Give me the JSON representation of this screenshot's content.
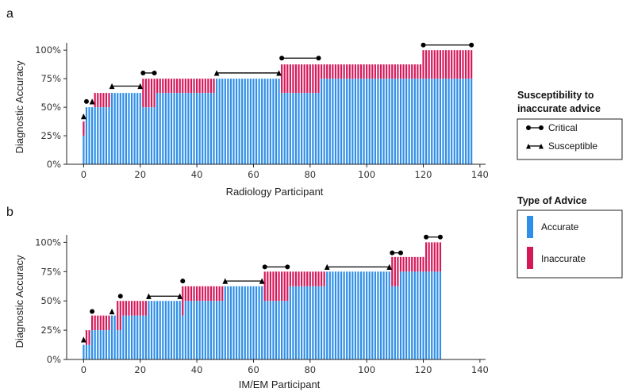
{
  "colors": {
    "accurate": "#2f8fe8",
    "inaccurate": "#d4195a",
    "marker": "#000000"
  },
  "legend": {
    "susceptibility_title_line1": "Susceptibility to",
    "susceptibility_title_line2": "inaccurate advice",
    "critical_label": "Critical",
    "susceptible_label": "Susceptible",
    "advice_title": "Type of Advice",
    "accurate_label": "Accurate",
    "inaccurate_label": "Inaccurate"
  },
  "chart_data": [
    {
      "panel": "a",
      "type": "bar",
      "stacked": true,
      "xlabel": "Radiology Participant",
      "ylabel": "Diagnostic Accuracy",
      "xlim": [
        -6,
        142
      ],
      "ylim": [
        0,
        1.05
      ],
      "xticks": [
        0,
        20,
        40,
        60,
        80,
        100,
        120,
        140
      ],
      "yticks": [
        0,
        0.25,
        0.5,
        0.75,
        1.0
      ],
      "ytick_labels": [
        "0%",
        "25%",
        "50%",
        "75%",
        "100%"
      ],
      "series_names": [
        "Accurate",
        "Inaccurate"
      ],
      "segments": [
        {
          "from": 0,
          "to": 0,
          "accurate": 0.25,
          "total": 0.375
        },
        {
          "from": 1,
          "to": 1,
          "accurate": 0.5,
          "total": 0.5
        },
        {
          "from": 2,
          "to": 2,
          "accurate": 0.5,
          "total": 0.5
        },
        {
          "from": 3,
          "to": 3,
          "accurate": 0.5,
          "total": 0.5
        },
        {
          "from": 4,
          "to": 9,
          "accurate": 0.5,
          "total": 0.625
        },
        {
          "from": 10,
          "to": 20,
          "accurate": 0.625,
          "total": 0.625
        },
        {
          "from": 21,
          "to": 25,
          "accurate": 0.5,
          "total": 0.75
        },
        {
          "from": 26,
          "to": 46,
          "accurate": 0.625,
          "total": 0.75
        },
        {
          "from": 47,
          "to": 69,
          "accurate": 0.75,
          "total": 0.75
        },
        {
          "from": 70,
          "to": 83,
          "accurate": 0.625,
          "total": 0.875
        },
        {
          "from": 84,
          "to": 119,
          "accurate": 0.75,
          "total": 0.875
        },
        {
          "from": 120,
          "to": 137,
          "accurate": 0.75,
          "total": 1.0
        }
      ],
      "markers": [
        {
          "type": "susceptible",
          "x": [
            0
          ],
          "y": 0.42
        },
        {
          "type": "critical",
          "x": [
            1
          ],
          "y": 0.55
        },
        {
          "type": "susceptible",
          "x": [
            3
          ],
          "y": 0.55
        },
        {
          "type": "susceptible",
          "x": [
            10,
            20
          ],
          "y": 0.685
        },
        {
          "type": "critical",
          "x": [
            21,
            25
          ],
          "y": 0.8
        },
        {
          "type": "susceptible",
          "x": [
            47,
            69
          ],
          "y": 0.8
        },
        {
          "type": "critical",
          "x": [
            70,
            83
          ],
          "y": 0.93
        },
        {
          "type": "critical",
          "x": [
            120,
            137
          ],
          "y": 1.045
        }
      ]
    },
    {
      "panel": "b",
      "type": "bar",
      "stacked": true,
      "xlabel": "IM/EM Participant",
      "ylabel": "Diagnostic Accuracy",
      "xlim": [
        -6,
        142
      ],
      "ylim": [
        0,
        1.05
      ],
      "xticks": [
        0,
        20,
        40,
        60,
        80,
        100,
        120,
        140
      ],
      "yticks": [
        0,
        0.25,
        0.5,
        0.75,
        1.0
      ],
      "ytick_labels": [
        "0%",
        "25%",
        "50%",
        "75%",
        "100%"
      ],
      "series_names": [
        "Accurate",
        "Inaccurate"
      ],
      "segments": [
        {
          "from": 0,
          "to": 0,
          "accurate": 0.125,
          "total": 0.125
        },
        {
          "from": 1,
          "to": 2,
          "accurate": 0.125,
          "total": 0.25
        },
        {
          "from": 3,
          "to": 3,
          "accurate": 0.25,
          "total": 0.375
        },
        {
          "from": 4,
          "to": 9,
          "accurate": 0.25,
          "total": 0.375
        },
        {
          "from": 10,
          "to": 11,
          "accurate": 0.375,
          "total": 0.375
        },
        {
          "from": 12,
          "to": 13,
          "accurate": 0.25,
          "total": 0.5
        },
        {
          "from": 14,
          "to": 22,
          "accurate": 0.375,
          "total": 0.5
        },
        {
          "from": 23,
          "to": 34,
          "accurate": 0.5,
          "total": 0.5
        },
        {
          "from": 35,
          "to": 35,
          "accurate": 0.375,
          "total": 0.625
        },
        {
          "from": 36,
          "to": 49,
          "accurate": 0.5,
          "total": 0.625
        },
        {
          "from": 50,
          "to": 63,
          "accurate": 0.625,
          "total": 0.625
        },
        {
          "from": 64,
          "to": 72,
          "accurate": 0.5,
          "total": 0.75
        },
        {
          "from": 73,
          "to": 85,
          "accurate": 0.625,
          "total": 0.75
        },
        {
          "from": 86,
          "to": 108,
          "accurate": 0.75,
          "total": 0.75
        },
        {
          "from": 109,
          "to": 111,
          "accurate": 0.625,
          "total": 0.875
        },
        {
          "from": 112,
          "to": 120,
          "accurate": 0.75,
          "total": 0.875
        },
        {
          "from": 121,
          "to": 126,
          "accurate": 0.75,
          "total": 1.0
        }
      ],
      "markers": [
        {
          "type": "susceptible",
          "x": [
            0
          ],
          "y": 0.17
        },
        {
          "type": "critical",
          "x": [
            3
          ],
          "y": 0.41
        },
        {
          "type": "susceptible",
          "x": [
            10
          ],
          "y": 0.41
        },
        {
          "type": "critical",
          "x": [
            13
          ],
          "y": 0.54
        },
        {
          "type": "susceptible",
          "x": [
            23,
            34
          ],
          "y": 0.54
        },
        {
          "type": "critical",
          "x": [
            35
          ],
          "y": 0.67
        },
        {
          "type": "susceptible",
          "x": [
            50,
            63
          ],
          "y": 0.67
        },
        {
          "type": "critical",
          "x": [
            64,
            72
          ],
          "y": 0.79
        },
        {
          "type": "susceptible",
          "x": [
            86,
            108
          ],
          "y": 0.79
        },
        {
          "type": "critical",
          "x": [
            109,
            112
          ],
          "y": 0.91
        },
        {
          "type": "critical",
          "x": [
            121,
            126
          ],
          "y": 1.045
        }
      ]
    }
  ],
  "panel_labels": [
    "a",
    "b"
  ]
}
